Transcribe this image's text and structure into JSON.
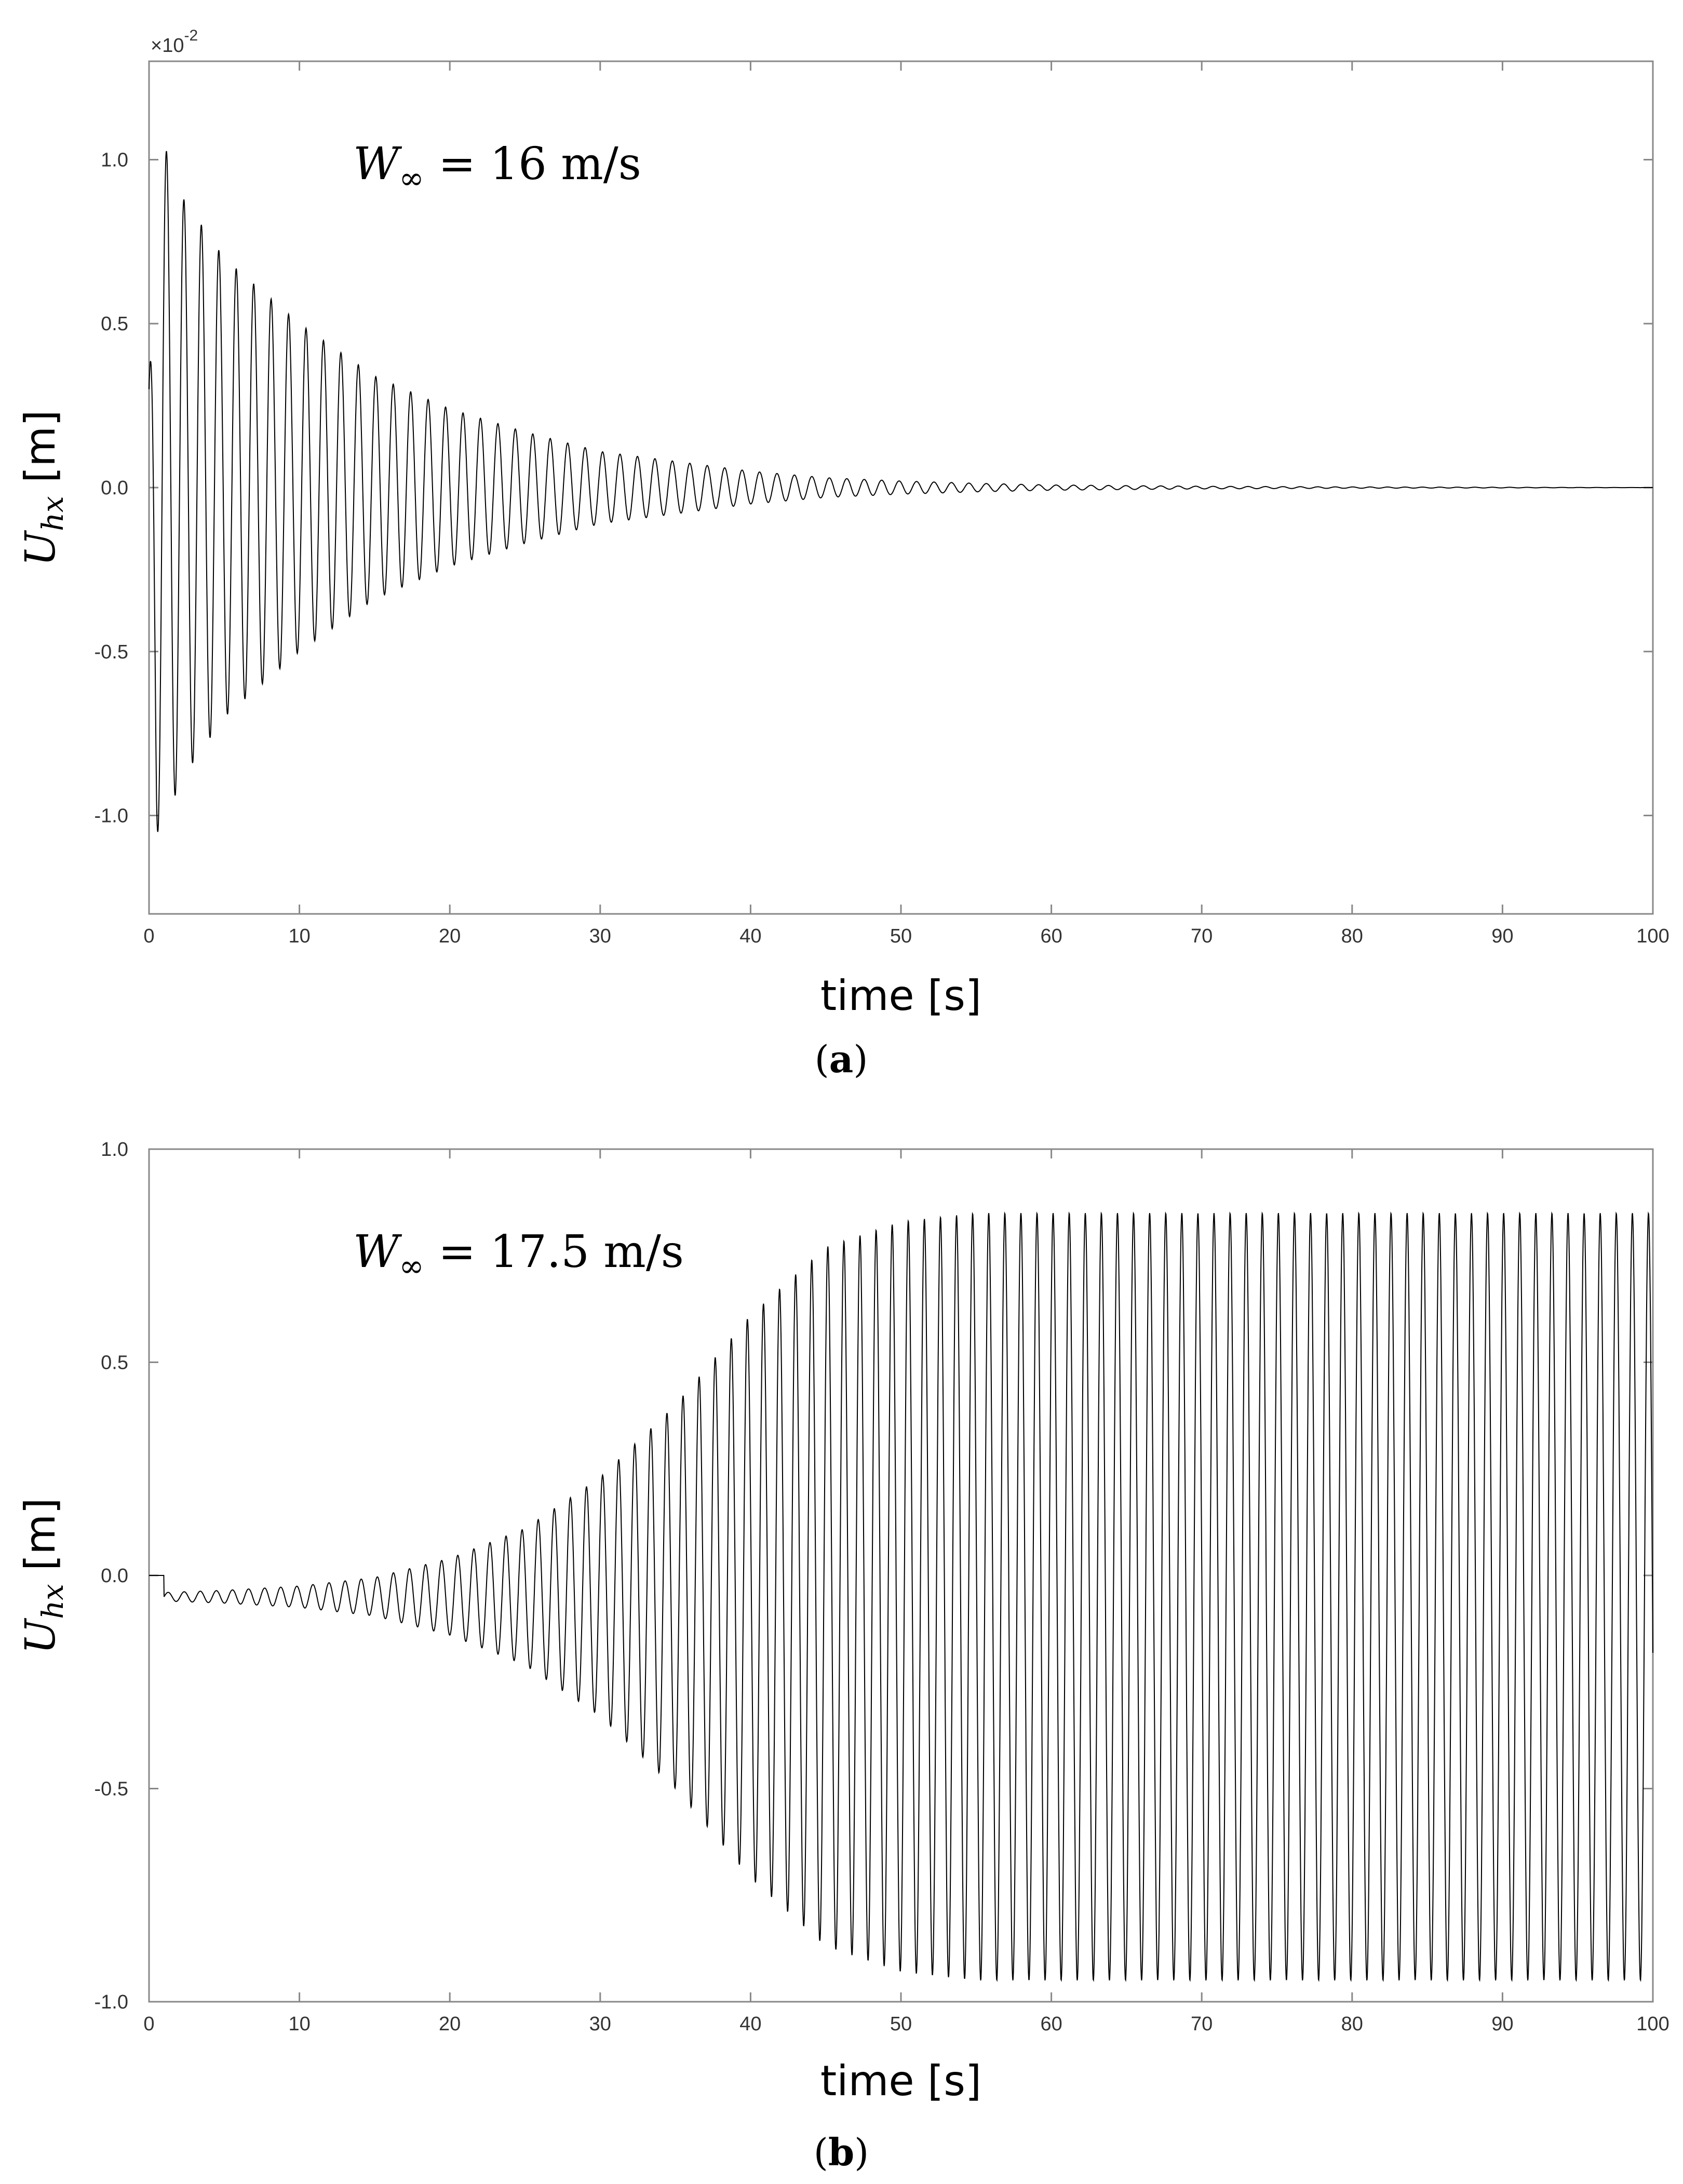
{
  "chart_data": [
    {
      "type": "line",
      "panel_label": "a",
      "xlabel": "time [s]",
      "ylabel": "U_hx [m]",
      "y_multiplier": "×10^-2",
      "annotation": "W∞ = 16 m/s",
      "xlim": [
        0,
        100
      ],
      "ylim": [
        -1.3,
        1.3
      ],
      "xticks": [
        0,
        10,
        20,
        30,
        40,
        50,
        60,
        70,
        80,
        90,
        100
      ],
      "yticks": [
        -1.0,
        -0.5,
        0.0,
        0.5,
        1.0
      ],
      "ytick_labels": [
        "-1.0",
        "-0.5",
        "0.0",
        "0.5",
        "1.0"
      ],
      "grid": false,
      "series": [
        {
          "description": "damped oscillation decaying to zero",
          "signal": {
            "form": "damped_sine",
            "offset": 0.0,
            "period_s": 1.16,
            "envelope_t": [
              0,
              0.5,
              1,
              2,
              5,
              10,
              15,
              20,
              25,
              30,
              35,
              40,
              45,
              50,
              55,
              60,
              70,
              80,
              100
            ],
            "envelope_amp": [
              0.3,
              1.05,
              1.05,
              0.9,
              0.7,
              0.5,
              0.34,
              0.24,
              0.17,
              0.11,
              0.08,
              0.05,
              0.03,
              0.02,
              0.013,
              0.008,
              0.004,
              0.002,
              0.0
            ]
          }
        }
      ]
    },
    {
      "type": "line",
      "panel_label": "b",
      "xlabel": "time [s]",
      "ylabel": "U_hx [m]",
      "annotation": "W∞ = 17.5 m/s",
      "xlim": [
        0,
        100
      ],
      "ylim": [
        -1.0,
        1.0
      ],
      "xticks": [
        0,
        10,
        20,
        30,
        40,
        50,
        60,
        70,
        80,
        90,
        100
      ],
      "yticks": [
        -1.0,
        -0.5,
        0.0,
        0.5,
        1.0
      ],
      "ytick_labels": [
        "-1.0",
        "-0.5",
        "0.0",
        "0.5",
        "1.0"
      ],
      "grid": false,
      "series": [
        {
          "description": "growing oscillation reaching a limit cycle",
          "signal": {
            "form": "growing_sine",
            "offset": -0.05,
            "period_s": 1.07,
            "start_s": 1,
            "envelope_t": [
              1,
              5,
              10,
              15,
              20,
              25,
              30,
              35,
              40,
              45,
              50,
              55,
              100
            ],
            "envelope_amp": [
              0.01,
              0.015,
              0.025,
              0.045,
              0.09,
              0.16,
              0.28,
              0.45,
              0.66,
              0.82,
              0.88,
              0.9,
              0.9
            ]
          }
        }
      ]
    }
  ]
}
